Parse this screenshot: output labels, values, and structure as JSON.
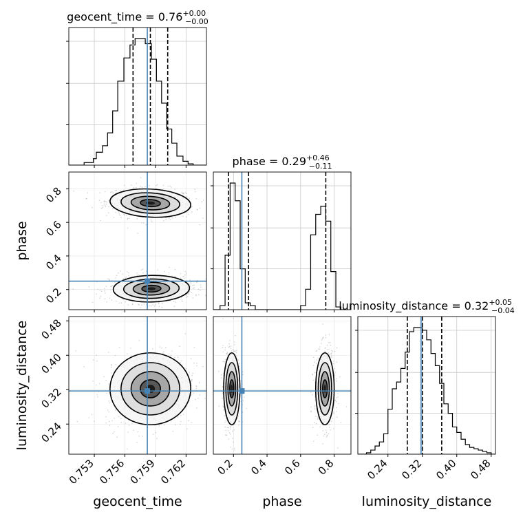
{
  "chart_data": {
    "type": "corner",
    "parameters": [
      {
        "name": "geocent_time",
        "axis_label": "geocent_time",
        "title": {
          "label": "geocent_time = 0.76",
          "upper": "+0.00",
          "lower": "−0.00"
        },
        "range": [
          0.7505,
          0.764
        ],
        "ticks": [
          0.753,
          0.756,
          0.759,
          0.762
        ],
        "tick_labels": [
          "0.753",
          "0.756",
          "0.759",
          "0.762"
        ],
        "quantiles": [
          0.7568,
          0.7585,
          0.7602
        ],
        "truth": 0.7582,
        "hist_bins": [
          0.7505,
          0.752,
          0.7529,
          0.7532,
          0.7538,
          0.7543,
          0.7548,
          0.7553,
          0.7559,
          0.7565,
          0.757,
          0.7575,
          0.758,
          0.7586,
          0.7591,
          0.7596,
          0.7601,
          0.7606,
          0.7611,
          0.7617,
          0.7622,
          0.7627,
          0.764
        ],
        "hist_counts": [
          0,
          0.02,
          0.05,
          0.1,
          0.15,
          0.25,
          0.42,
          0.65,
          0.83,
          0.93,
          0.98,
          0.98,
          0.94,
          0.82,
          0.65,
          0.48,
          0.28,
          0.17,
          0.07,
          0.03,
          0.01,
          0
        ]
      },
      {
        "name": "phase",
        "axis_label": "phase",
        "title": {
          "label": "phase = 0.29",
          "upper": "+0.46",
          "lower": "−0.11"
        },
        "range": [
          0.08,
          0.9
        ],
        "ticks": [
          0.2,
          0.4,
          0.6,
          0.8
        ],
        "tick_labels": [
          "0.2",
          "0.4",
          "0.6",
          "0.8"
        ],
        "quantiles": [
          0.17,
          0.29,
          0.75
        ],
        "truth": 0.25,
        "hist_bins": [
          0.08,
          0.12,
          0.15,
          0.18,
          0.21,
          0.24,
          0.27,
          0.3,
          0.33,
          0.36,
          0.39,
          0.42,
          0.45,
          0.48,
          0.51,
          0.54,
          0.57,
          0.6,
          0.63,
          0.66,
          0.69,
          0.72,
          0.75,
          0.78,
          0.81,
          0.84,
          0.87
        ],
        "hist_counts": [
          0,
          0.03,
          0.4,
          0.93,
          0.8,
          0.3,
          0.05,
          0.03,
          0,
          0,
          0,
          0,
          0,
          0,
          0,
          0,
          0,
          0.03,
          0.15,
          0.55,
          0.7,
          0.76,
          0.65,
          0.28,
          0.02,
          0
        ]
      },
      {
        "name": "luminosity_distance",
        "axis_label": "luminosity_distance",
        "title": {
          "label": "luminosity_distance = 0.32",
          "upper": "+0.05",
          "lower": "−0.04"
        },
        "range": [
          0.17,
          0.49
        ],
        "ticks": [
          0.24,
          0.32,
          0.4,
          0.48
        ],
        "tick_labels": [
          "0.24",
          "0.32",
          "0.40",
          "0.48"
        ],
        "quantiles": [
          0.285,
          0.32,
          0.365
        ],
        "truth": 0.317,
        "hist_bins": [
          0.17,
          0.19,
          0.2,
          0.21,
          0.22,
          0.23,
          0.24,
          0.25,
          0.26,
          0.27,
          0.28,
          0.29,
          0.3,
          0.31,
          0.32,
          0.33,
          0.34,
          0.35,
          0.36,
          0.37,
          0.38,
          0.39,
          0.4,
          0.41,
          0.42,
          0.43,
          0.44,
          0.45,
          0.46,
          0.47,
          0.48,
          0.49
        ],
        "hist_counts": [
          0,
          0.01,
          0.03,
          0.06,
          0.09,
          0.15,
          0.33,
          0.48,
          0.53,
          0.63,
          0.75,
          0.9,
          0.93,
          0.93,
          0.91,
          0.84,
          0.74,
          0.65,
          0.52,
          0.37,
          0.3,
          0.2,
          0.16,
          0.11,
          0.07,
          0.05,
          0.04,
          0.03,
          0.02,
          0.01,
          0
        ]
      }
    ],
    "pair_panels": [
      {
        "x": "geocent_time",
        "y": "phase",
        "modes": [
          {
            "mx": 0.7585,
            "my": 0.715,
            "sx": 0.0018,
            "sy": 0.038,
            "tilt": -0.12
          },
          {
            "mx": 0.7586,
            "my": 0.205,
            "sx": 0.0017,
            "sy": 0.036,
            "tilt": 0.05
          }
        ]
      },
      {
        "x": "geocent_time",
        "y": "luminosity_distance",
        "modes": [
          {
            "mx": 0.7585,
            "my": 0.322,
            "sx": 0.0018,
            "sy": 0.038,
            "tilt": 0.05
          }
        ]
      },
      {
        "x": "phase",
        "y": "luminosity_distance",
        "modes": [
          {
            "mx": 0.19,
            "my": 0.322,
            "sx": 0.022,
            "sy": 0.038,
            "tilt": 0.0
          },
          {
            "mx": 0.745,
            "my": 0.322,
            "sx": 0.025,
            "sy": 0.038,
            "tilt": 0.0
          }
        ]
      }
    ],
    "truth_color": "#4682b4",
    "grid": true
  }
}
